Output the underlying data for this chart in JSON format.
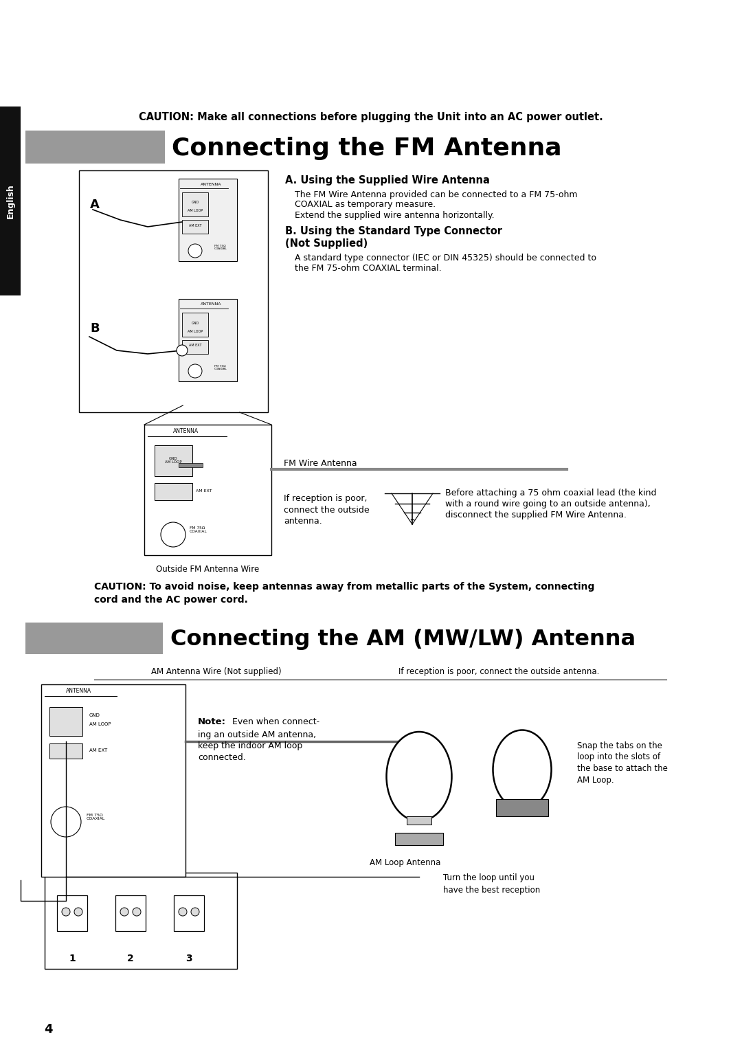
{
  "bg_color": "#ffffff",
  "page_number": "4",
  "caution1": "CAUTION: Make all connections before plugging the Unit into an AC power outlet.",
  "section1_title": "Connecting the FM Antenna",
  "section1_bar_color": "#999999",
  "section2_title": "Connecting the AM (MW/LW) Antenna",
  "section2_bar_color": "#999999",
  "fm_A_label": "A",
  "fm_B_label": "B",
  "fm_instructions_A_title": "A. Using the Supplied Wire Antenna",
  "fm_instructions_A_body1": "The FM Wire Antenna provided can be connected to a FM 75-ohm",
  "fm_instructions_A_body2": "COAXIAL as temporary measure.",
  "fm_instructions_A_body3": "Extend the supplied wire antenna horizontally.",
  "fm_instructions_B_title": "B. Using the Standard Type Connector",
  "fm_instructions_B_title2": "(Not Supplied)",
  "fm_instructions_B_body1": "A standard type connector (IEC or DIN 45325) should be connected to",
  "fm_instructions_B_body2": "the FM 75-ohm COAXIAL terminal.",
  "fm_wire_antenna_label": "FM Wire Antenna",
  "fm_outside_label": "Outside FM Antenna Wire",
  "fm_poor_text1": "If reception is poor,",
  "fm_poor_text2": "connect the outside",
  "fm_poor_text3": "antenna.",
  "fm_before_text1": "Before attaching a 75 ohm coaxial lead (the kind",
  "fm_before_text2": "with a round wire going to an outside antenna),",
  "fm_before_text3": "disconnect the supplied FM Wire Antenna.",
  "caution2_line1": "CAUTION: To avoid noise, keep antennas away from metallic parts of the System, connecting",
  "caution2_line2": "cord and the AC power cord.",
  "am_antenna_wire_label": "AM Antenna Wire (Not supplied)",
  "am_if_poor_label": "If reception is poor, connect the outside antenna.",
  "am_note_title": "Note:",
  "am_note_body1": " Even when connect-",
  "am_note_body2": "ing an outside AM antenna,",
  "am_note_body3": "keep the indoor AM loop",
  "am_note_body4": "connected.",
  "am_loop_label": "AM Loop Antenna",
  "am_snap_text1": "Snap the tabs on the",
  "am_snap_text2": "loop into the slots of",
  "am_snap_text3": "the base to attach the",
  "am_snap_text4": "AM Loop.",
  "am_turn_text1": "Turn the loop until you",
  "am_turn_text2": "have the best reception"
}
